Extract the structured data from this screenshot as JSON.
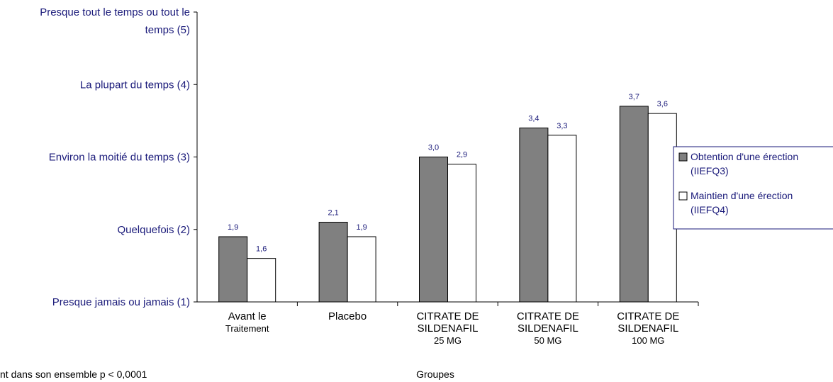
{
  "chart_data": {
    "type": "bar",
    "ylim": [
      1,
      5
    ],
    "y_ticks": [
      {
        "value": 1,
        "label": "Presque jamais ou jamais (1)"
      },
      {
        "value": 2,
        "label": "Quelquefois (2)"
      },
      {
        "value": 3,
        "label": "Environ la moitié du temps (3)"
      },
      {
        "value": 4,
        "label": "La plupart du temps (4)"
      },
      {
        "value": 5,
        "label_lines": [
          "Presque tout le temps ou tout le",
          "temps (5)"
        ]
      }
    ],
    "categories": [
      {
        "lines": [
          "Avant le",
          "Traitement"
        ]
      },
      {
        "lines": [
          "Placebo"
        ]
      },
      {
        "lines": [
          "CITRATE DE",
          "SILDENAFIL",
          "25 MG"
        ]
      },
      {
        "lines": [
          "CITRATE DE",
          "SILDENAFIL",
          "50 MG"
        ]
      },
      {
        "lines": [
          "CITRATE DE",
          "SILDENAFIL",
          "100 MG"
        ]
      }
    ],
    "series": [
      {
        "name": "Obtention d'une érection (IIEFQ3)",
        "legend_lines": [
          "Obtention d'une érection",
          "(IIEFQ3)"
        ],
        "color": "#808080",
        "values": [
          1.9,
          2.1,
          3.0,
          3.4,
          3.7
        ],
        "labels": [
          "1,9",
          "2,1",
          "3,0",
          "3,4",
          "3,7"
        ]
      },
      {
        "name": "Maintien d'une érection (IIEFQ4)",
        "legend_lines": [
          "Maintien d'une érection",
          "(IIEFQ4)"
        ],
        "color": "#ffffff",
        "values": [
          1.6,
          1.9,
          2.9,
          3.3,
          3.6
        ],
        "labels": [
          "1,6",
          "1,9",
          "2,9",
          "3,3",
          "3,6"
        ]
      }
    ],
    "xlabel": "Groupes",
    "footnote": "nt dans son ensemble p < 0,0001",
    "grid": false,
    "legend_position": "right"
  },
  "colors": {
    "axis_text": "#1a1a7a",
    "legend_border": "#1a1a7a",
    "bar_outline": "#000000"
  }
}
